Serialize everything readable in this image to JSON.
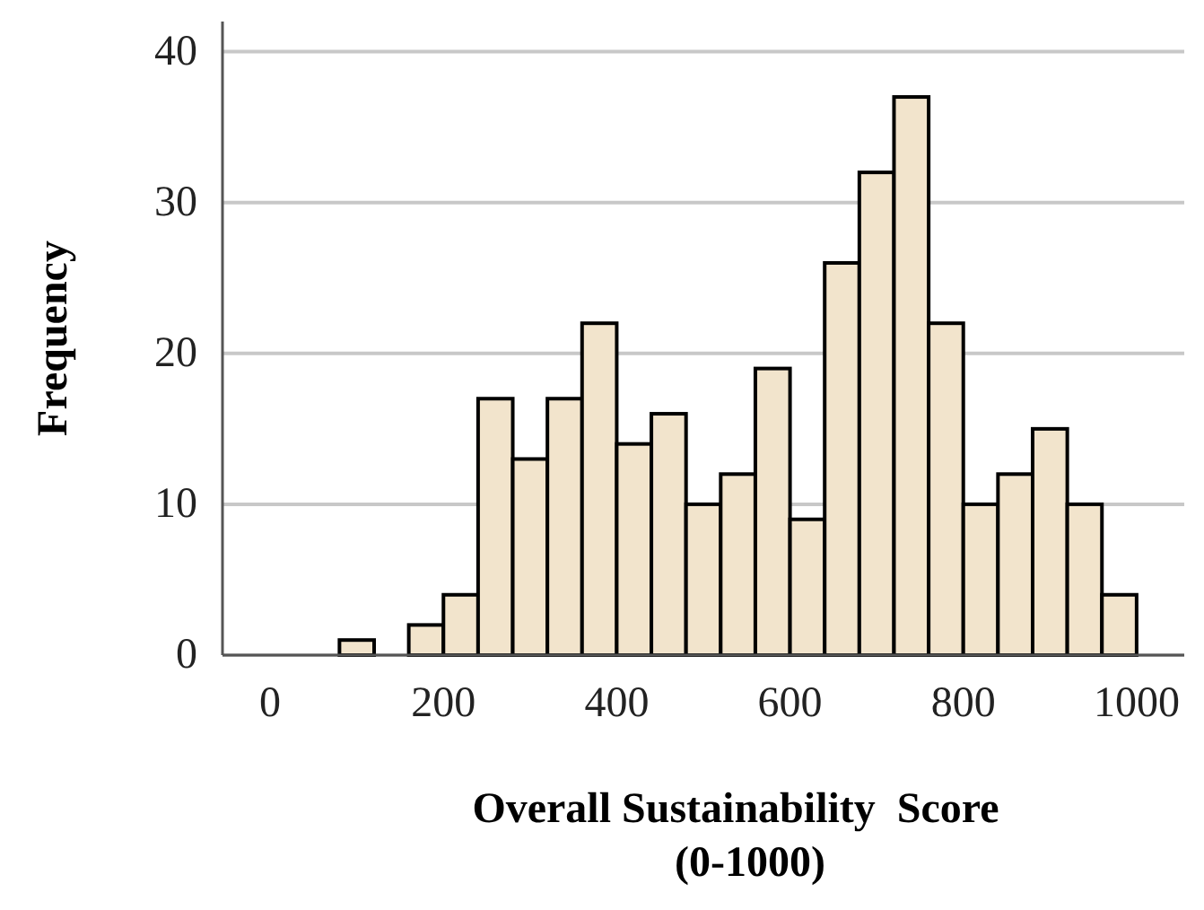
{
  "chart_data": {
    "type": "histogram",
    "xlabel": "Overall Sustainability  Score\n(0-1000)",
    "ylabel": "Frequency",
    "bins": [
      80,
      120,
      160,
      200,
      240,
      280,
      320,
      360,
      400,
      440,
      480,
      520,
      560,
      600,
      640,
      680,
      720,
      760,
      800,
      840,
      880,
      920,
      960,
      1000
    ],
    "values": [
      1,
      0,
      2,
      4,
      17,
      13,
      17,
      22,
      14,
      16,
      10,
      12,
      19,
      9,
      26,
      32,
      37,
      22,
      10,
      12,
      15,
      10,
      4
    ],
    "color": "#f2e4cc",
    "xlim": [
      -55,
      1055
    ],
    "ylim": [
      0,
      42
    ],
    "xticks": [
      0,
      200,
      400,
      600,
      800,
      1000
    ],
    "yticks": [
      0,
      10,
      20,
      30,
      40
    ],
    "grid": "y"
  }
}
